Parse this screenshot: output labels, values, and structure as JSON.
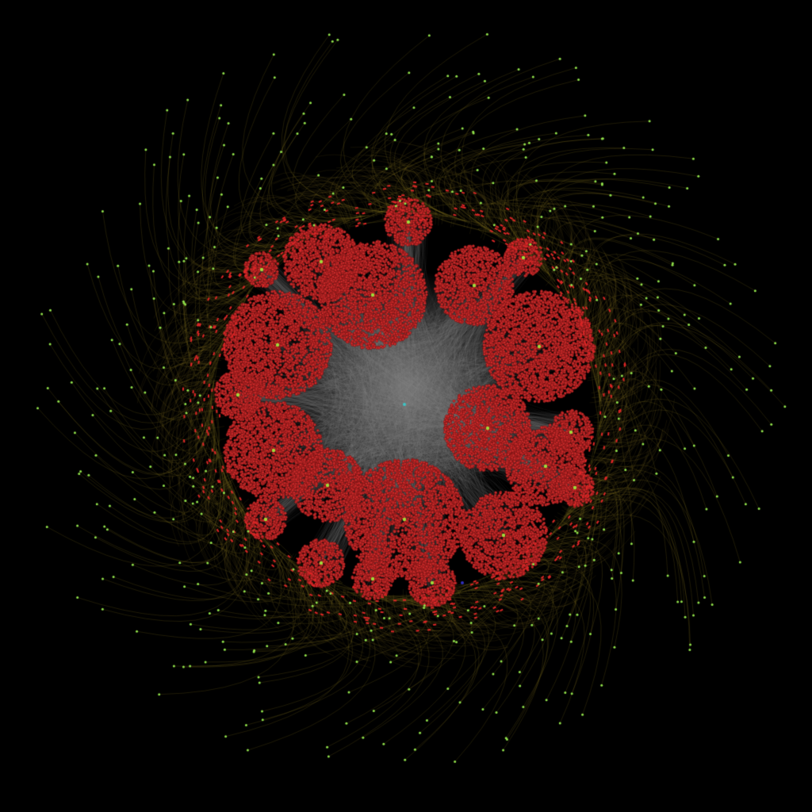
{
  "diagram": {
    "type": "network-graph",
    "layout": "radial-clustered",
    "background_color": "#000000",
    "node_colors": {
      "core_cluster_node": "#cc2a2a",
      "ring_node": "#dd2626",
      "peripheral_leaf_node": "#8fe04a",
      "hub_node": "#9fdc3a",
      "center_node": "#3cc6c6",
      "accent_node": "#3030c0"
    },
    "edge_colors": {
      "internal_edge": "#8a8a8a",
      "peripheral_edge": "#8c7a1e"
    },
    "clusters": [
      {
        "name": "",
        "hub": true
      },
      {
        "name": "",
        "hub": true
      },
      {
        "name": "",
        "hub": true
      },
      {
        "name": "",
        "hub": true
      },
      {
        "name": "",
        "hub": true
      },
      {
        "name": "",
        "hub": true
      },
      {
        "name": "",
        "hub": true
      },
      {
        "name": "",
        "hub": true
      },
      {
        "name": "",
        "hub": true
      },
      {
        "name": "",
        "hub": true
      },
      {
        "name": "",
        "hub": true
      },
      {
        "name": "",
        "hub": true
      },
      {
        "name": "",
        "hub": true
      },
      {
        "name": "",
        "hub": true
      },
      {
        "name": "",
        "hub": true
      },
      {
        "name": "",
        "hub": true
      },
      {
        "name": "",
        "hub": true
      },
      {
        "name": "",
        "hub": true
      }
    ],
    "peripheral_leaf_count": 430,
    "ring_node_count": 520,
    "labels_shown": false
  }
}
